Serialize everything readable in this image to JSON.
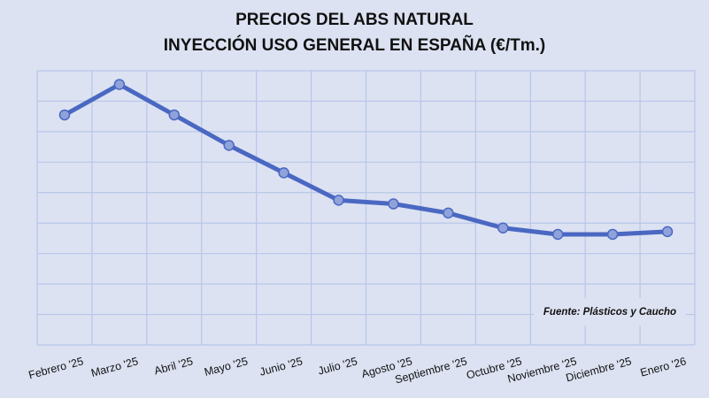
{
  "chart_data": {
    "type": "line",
    "title": "PRECIOS DEL ABS NATURAL",
    "subtitle": "INYECCIÓN USO GENERAL EN ESPAÑA (€/Tm.)",
    "xlabel": "",
    "ylabel": "",
    "categories": [
      "Febrero '25",
      "Marzo '25",
      "Abril '25",
      "Mayo '25",
      "Junio '25",
      "Julio '25",
      "Agosto '25",
      "Septiembre '25",
      "Octubre '25",
      "Noviembre '25",
      "Diciembre '25",
      "Enero '26"
    ],
    "series": [
      {
        "name": "ABS natural",
        "values": [
          7.55,
          8.55,
          7.55,
          6.55,
          5.65,
          4.75,
          4.63,
          4.33,
          3.84,
          3.63,
          3.63,
          3.72
        ]
      }
    ],
    "ylim": [
      0,
      9
    ],
    "y_note": "relative values in gridline units (no y-axis labels shown)",
    "grid": true,
    "colors": {
      "line": "#4a68c2",
      "marker": "#8fa2da",
      "grid": "#b7c6e8",
      "background": "#dce2f2"
    },
    "annotation": "Fuente: Plásticos y Caucho"
  }
}
